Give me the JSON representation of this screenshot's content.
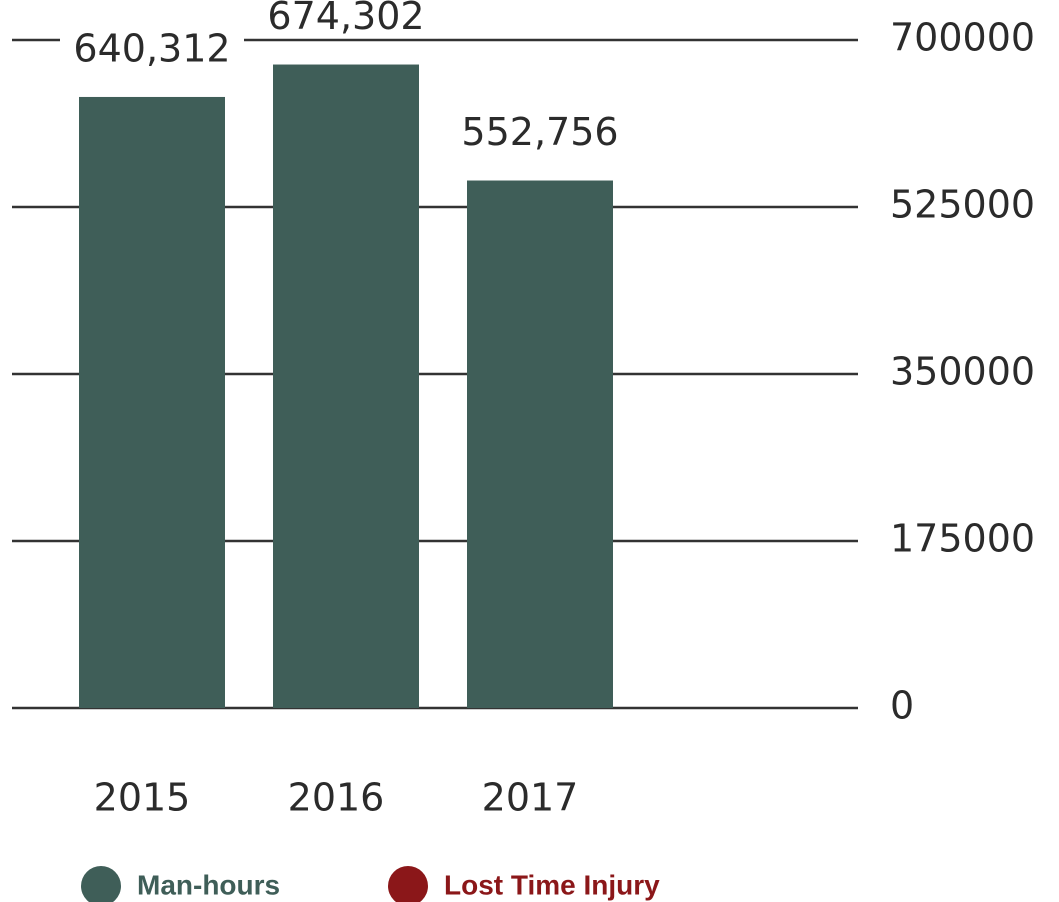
{
  "chart_data": {
    "type": "bar",
    "categories": [
      "2015",
      "2016",
      "2017"
    ],
    "series": [
      {
        "name": "Man-hours",
        "color": "#3f5e58",
        "values": [
          640312,
          674302,
          552756
        ],
        "value_labels": [
          "640,312",
          "674,302",
          "552,756"
        ]
      },
      {
        "name": "Lost Time Injury",
        "color": "#8b1719",
        "values": [
          null,
          null,
          null
        ]
      }
    ],
    "ylim": [
      0,
      700000
    ],
    "yticks": [
      0,
      175000,
      350000,
      525000,
      700000
    ],
    "grid": true
  }
}
